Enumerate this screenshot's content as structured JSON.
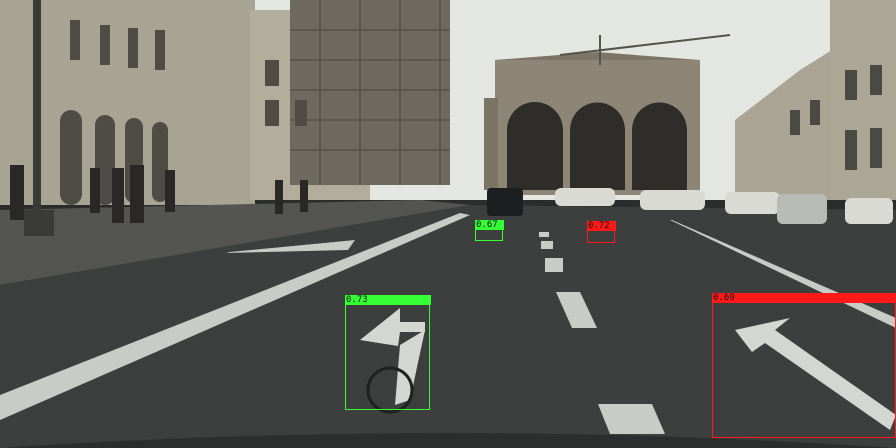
{
  "image": {
    "description_colors": {
      "sky": "#e6e8e4",
      "road": "#3b3e3d",
      "building_left": "#a9a594",
      "building_center": "#8c8575",
      "green_box": "#33ff33",
      "red_box": "#ff1a1a"
    }
  },
  "detections": [
    {
      "score": "0.73",
      "color": "#33ff33"
    },
    {
      "score": "0.67",
      "color": "#33ff33"
    },
    {
      "score": "0.72",
      "color": "#ff1a1a"
    },
    {
      "score": "0.69",
      "color": "#ff1a1a"
    }
  ]
}
